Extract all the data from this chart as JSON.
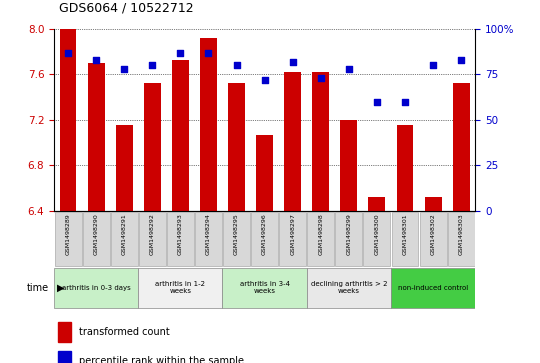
{
  "title": "GDS6064 / 10522712",
  "samples": [
    "GSM1498289",
    "GSM1498290",
    "GSM1498291",
    "GSM1498292",
    "GSM1498293",
    "GSM1498294",
    "GSM1498295",
    "GSM1498296",
    "GSM1498297",
    "GSM1498298",
    "GSM1498299",
    "GSM1498300",
    "GSM1498301",
    "GSM1498302",
    "GSM1498303"
  ],
  "bar_values": [
    8.0,
    7.7,
    7.15,
    7.52,
    7.73,
    7.92,
    7.52,
    7.07,
    7.62,
    7.62,
    7.2,
    6.52,
    7.15,
    6.52,
    7.52
  ],
  "dot_values": [
    87,
    83,
    78,
    80,
    87,
    87,
    80,
    72,
    82,
    73,
    78,
    60,
    60,
    80,
    83
  ],
  "bar_color": "#cc0000",
  "dot_color": "#0000cc",
  "ymin": 6.4,
  "ymax": 8.0,
  "y2min": 0,
  "y2max": 100,
  "yticks": [
    6.4,
    6.8,
    7.2,
    7.6,
    8.0
  ],
  "y2ticks": [
    0,
    25,
    50,
    75,
    100
  ],
  "y2ticklabels": [
    "0",
    "25",
    "50",
    "75",
    "100%"
  ],
  "groups": [
    {
      "label": "arthritis in 0-3 days",
      "start": 0,
      "end": 3,
      "color": "#c8f0c8"
    },
    {
      "label": "arthritis in 1-2\nweeks",
      "start": 3,
      "end": 6,
      "color": "#f0f0f0"
    },
    {
      "label": "arthritis in 3-4\nweeks",
      "start": 6,
      "end": 9,
      "color": "#c8f0c8"
    },
    {
      "label": "declining arthritis > 2\nweeks",
      "start": 9,
      "end": 12,
      "color": "#e8e8e8"
    },
    {
      "label": "non-induced control",
      "start": 12,
      "end": 15,
      "color": "#44cc44"
    }
  ],
  "legend_bar_label": "transformed count",
  "legend_dot_label": "percentile rank within the sample",
  "time_label": "time",
  "bar_ytick_color": "#cc0000",
  "y2tick_color": "#0000cc",
  "sample_box_color": "#d8d8d8",
  "sample_box_edge": "#aaaaaa"
}
